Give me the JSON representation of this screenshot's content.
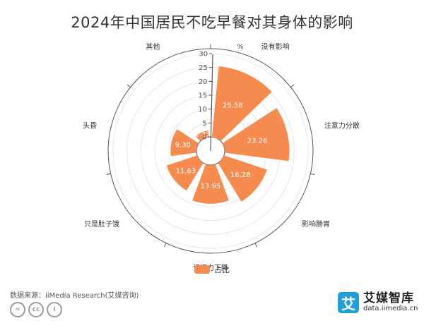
{
  "title": "2024年中国居民不吃早餐对其身体的影响",
  "chart_data": {
    "type": "polar-bar",
    "title": "2024年中国居民不吃早餐对其身体的影响",
    "unit": "%",
    "radial_ticks": [
      0,
      5,
      10,
      15,
      20,
      25,
      30
    ],
    "rmax": 30,
    "categories": [
      "没有影响",
      "注意力分散",
      "影响肠胃",
      "记忆力下降",
      "只是肚子饿",
      "头昏",
      "其他"
    ],
    "series": [
      {
        "name": "占比",
        "values": [
          25.58,
          23.26,
          16.28,
          13.95,
          11.63,
          9.3,
          2.33
        ]
      }
    ],
    "value_labels": [
      "25.58",
      "23.26",
      "16.28",
      "13.95",
      "11.63",
      "9.30",
      "2.33"
    ],
    "legend": "bottom",
    "colors": {
      "bar": "#f68b4f",
      "axis": "#555555",
      "grid": "#e6e6e6"
    }
  },
  "legend_label": "占比",
  "source": "数据来源：iiMedia Research(艾媒咨询)",
  "cc_icons": [
    "=",
    "cc",
    "i"
  ],
  "brand": {
    "logo": "艾",
    "name": "艾媒智库",
    "url": "data.iimedia.cn"
  }
}
